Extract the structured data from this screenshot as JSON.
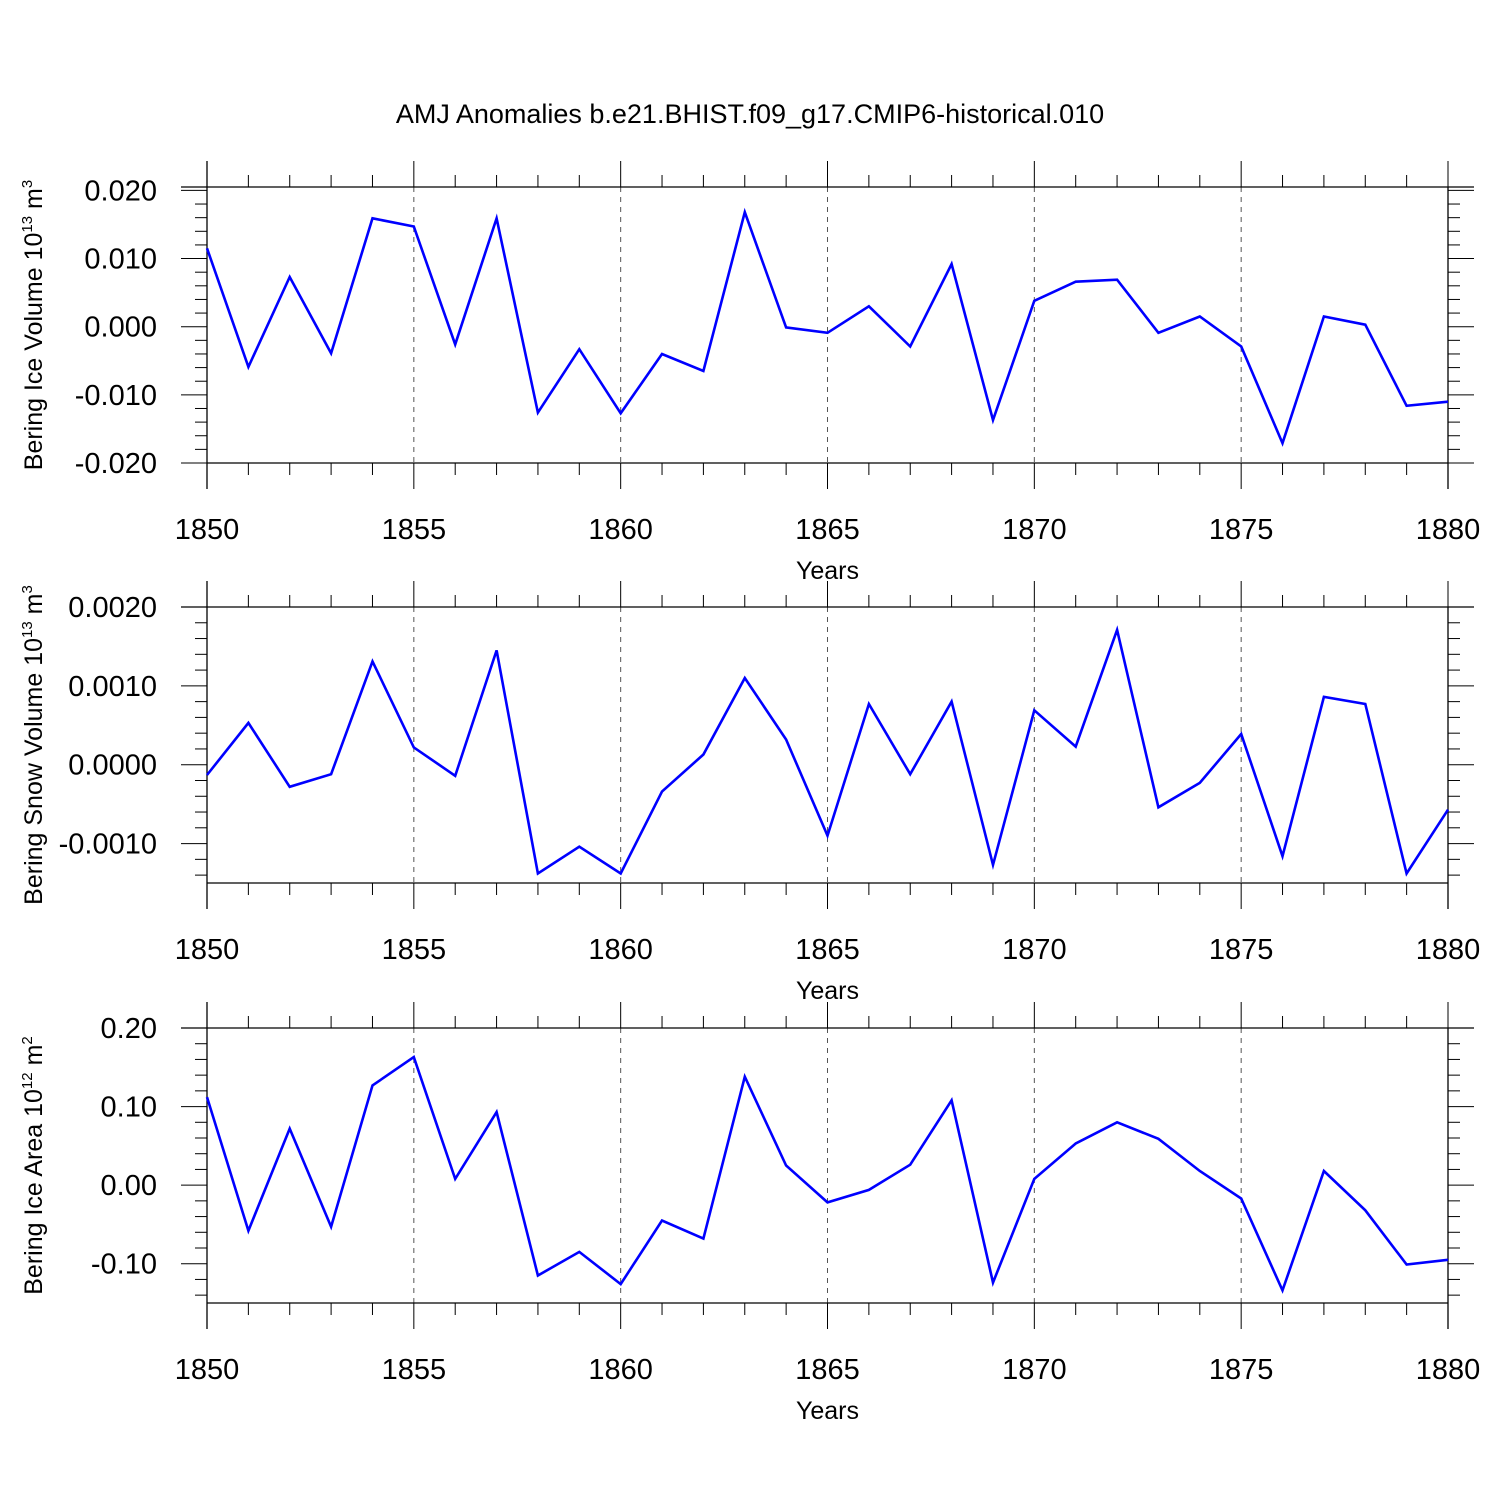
{
  "figure": {
    "title": "AMJ Anomalies b.e21.BHIST.f09_g17.CMIP6-historical.010",
    "line_color": "#0000ff"
  },
  "chart_data": [
    {
      "type": "line",
      "title": "",
      "xlabel": "Years",
      "ylabel_parts": {
        "text": "Bering Ice Volume 10",
        "exp": "13",
        "unit": " m",
        "unit_exp": "3"
      },
      "xlim": [
        1850,
        1880
      ],
      "ylim": [
        -0.02,
        0.0205
      ],
      "x_ticks": [
        1850,
        1855,
        1860,
        1865,
        1870,
        1875,
        1880
      ],
      "x_tick_labels": [
        "1850",
        "1855",
        "1860",
        "1865",
        "1870",
        "1875",
        "1880"
      ],
      "y_ticks": [
        0.02,
        0.01,
        0.0,
        -0.01,
        -0.02
      ],
      "y_tick_labels": [
        "0.020",
        "0.010",
        "0.000",
        "-0.010",
        "-0.020"
      ],
      "grid": "vertical dashed at major x ticks",
      "series": [
        {
          "name": "Bering Ice Volume",
          "x": [
            1850,
            1851,
            1852,
            1853,
            1854,
            1855,
            1856,
            1857,
            1858,
            1859,
            1860,
            1861,
            1862,
            1863,
            1864,
            1865,
            1866,
            1867,
            1868,
            1869,
            1870,
            1871,
            1872,
            1873,
            1874,
            1875,
            1876,
            1877,
            1878,
            1879,
            1880
          ],
          "values": [
            0.0115,
            -0.0059,
            0.0073,
            -0.0039,
            0.0159,
            0.0147,
            -0.0026,
            0.0159,
            -0.0126,
            -0.0033,
            -0.0127,
            -0.004,
            -0.0065,
            0.0168,
            -0.0001,
            -0.0009,
            0.003,
            -0.0029,
            0.0092,
            -0.0137,
            0.0038,
            0.0066,
            0.0069,
            -0.0009,
            0.0015,
            -0.0029,
            -0.0171,
            0.0015,
            0.0003,
            -0.0116,
            -0.011
          ]
        }
      ]
    },
    {
      "type": "line",
      "title": "",
      "xlabel": "Years",
      "ylabel_parts": {
        "text": "Bering Snow Volume 10",
        "exp": "13",
        "unit": " m",
        "unit_exp": "3"
      },
      "xlim": [
        1850,
        1880
      ],
      "ylim": [
        -0.0015,
        0.002
      ],
      "x_ticks": [
        1850,
        1855,
        1860,
        1865,
        1870,
        1875,
        1880
      ],
      "x_tick_labels": [
        "1850",
        "1855",
        "1860",
        "1865",
        "1870",
        "1875",
        "1880"
      ],
      "y_ticks": [
        0.002,
        0.001,
        0.0,
        -0.001
      ],
      "y_tick_labels": [
        "0.0020",
        "0.0010",
        "0.0000",
        "-0.0010"
      ],
      "grid": "vertical dashed at major x ticks",
      "series": [
        {
          "name": "Bering Snow Volume",
          "x": [
            1850,
            1851,
            1852,
            1853,
            1854,
            1855,
            1856,
            1857,
            1858,
            1859,
            1860,
            1861,
            1862,
            1863,
            1864,
            1865,
            1866,
            1867,
            1868,
            1869,
            1870,
            1871,
            1872,
            1873,
            1874,
            1875,
            1876,
            1877,
            1878,
            1879,
            1880
          ],
          "values": [
            -0.00013,
            0.00053,
            -0.00028,
            -0.00012,
            0.00131,
            0.00022,
            -0.00014,
            0.00145,
            -0.00138,
            -0.00104,
            -0.00138,
            -0.00034,
            0.00013,
            0.0011,
            0.00032,
            -0.0009,
            0.00077,
            -0.00012,
            0.0008,
            -0.00127,
            0.00069,
            0.00023,
            0.00171,
            -0.00054,
            -0.00023,
            0.00039,
            -0.00116,
            0.00086,
            0.00077,
            -0.00138,
            -0.00057
          ]
        }
      ]
    },
    {
      "type": "line",
      "title": "",
      "xlabel": "Years",
      "ylabel_parts": {
        "text": "Bering Ice Area 10",
        "exp": "12",
        "unit": " m",
        "unit_exp": "2"
      },
      "xlim": [
        1850,
        1880
      ],
      "ylim": [
        -0.15,
        0.2
      ],
      "x_ticks": [
        1850,
        1855,
        1860,
        1865,
        1870,
        1875,
        1880
      ],
      "x_tick_labels": [
        "1850",
        "1855",
        "1860",
        "1865",
        "1870",
        "1875",
        "1880"
      ],
      "y_ticks": [
        0.2,
        0.1,
        0.0,
        -0.1
      ],
      "y_tick_labels": [
        "0.20",
        "0.10",
        "0.00",
        "-0.10"
      ],
      "grid": "vertical dashed at major x ticks",
      "series": [
        {
          "name": "Bering Ice Area",
          "x": [
            1850,
            1851,
            1852,
            1853,
            1854,
            1855,
            1856,
            1857,
            1858,
            1859,
            1860,
            1861,
            1862,
            1863,
            1864,
            1865,
            1866,
            1867,
            1868,
            1869,
            1870,
            1871,
            1872,
            1873,
            1874,
            1875,
            1876,
            1877,
            1878,
            1879,
            1880
          ],
          "values": [
            0.112,
            -0.058,
            0.072,
            -0.053,
            0.127,
            0.163,
            0.008,
            0.093,
            -0.115,
            -0.085,
            -0.126,
            -0.045,
            -0.068,
            0.138,
            0.025,
            -0.022,
            -0.006,
            0.026,
            0.108,
            -0.124,
            0.008,
            0.053,
            0.08,
            0.059,
            0.018,
            -0.017,
            -0.134,
            0.018,
            -0.032,
            -0.101,
            -0.095
          ]
        }
      ]
    }
  ]
}
